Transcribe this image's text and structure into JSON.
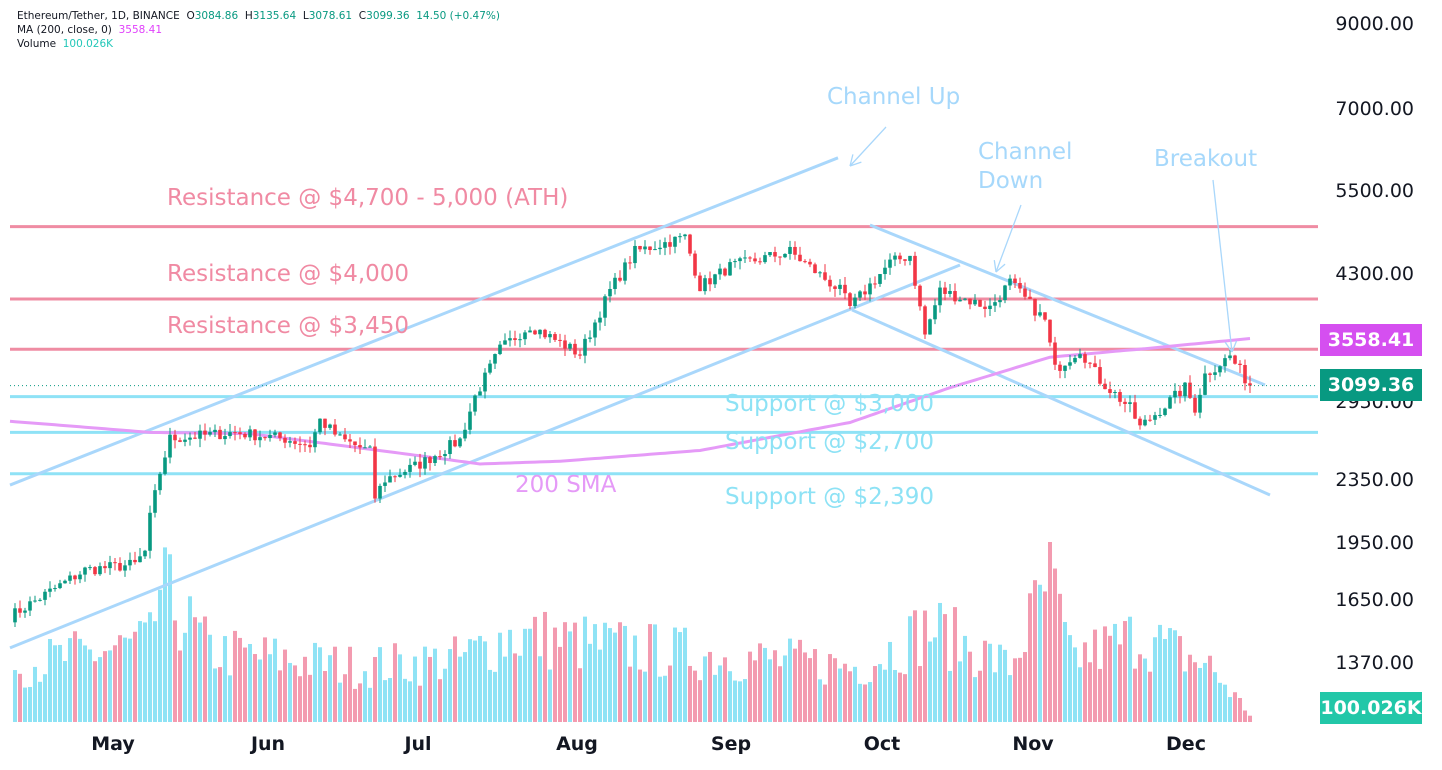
{
  "legend": {
    "symbol": "Ethereum/Tether, 1D, BINANCE",
    "open_label": "O",
    "open": "3084.86",
    "high_label": "H",
    "high": "3135.64",
    "low_label": "L",
    "low": "3078.61",
    "close_label": "C",
    "close": "3099.36",
    "change": "14.50 (+0.47%)",
    "ma_label": "MA (200, close, 0)",
    "ma_value": "3558.41",
    "volume_label": "Volume",
    "volume_value": "100.026K"
  },
  "colors": {
    "up": "#089981",
    "down": "#f23645",
    "vol_up": "#8fe3f5",
    "vol_down": "#f39bb0",
    "resistance": "#ef8ca3",
    "support": "#8fe2f6",
    "channel": "#a9d7fb",
    "ma": "#e59af7"
  },
  "price_tags": {
    "ma": "3558.41",
    "last": "3099.36",
    "volume": "100.026K"
  },
  "annotations": {
    "channel_up": "Channel Up",
    "channel_down_1": "Channel",
    "channel_down_2": "Down",
    "breakout": "Breakout",
    "res_ath": "Resistance @ $4,700 - 5,000 (ATH)",
    "res_4000": "Resistance @ $4,000",
    "res_3450": "Resistance @ $3,450",
    "sup_3000": "Support @ $3,000",
    "sup_2700": "Support @ $2,700",
    "sup_2390": "Support @ $2,390",
    "sma": "200 SMA"
  },
  "chart_data": {
    "type": "candlestick",
    "title": "Ethereum/Tether, 1D, BINANCE",
    "scale": "log",
    "y_ticks": [
      "9000.00",
      "7000.00",
      "5500.00",
      "4300.00",
      "2950.00",
      "2350.00",
      "1950.00",
      "1650.00",
      "1370.00"
    ],
    "x_ticks": [
      "May",
      "Jun",
      "Jul",
      "Aug",
      "Sep",
      "Oct",
      "Nov",
      "Dec"
    ],
    "days": 248,
    "close_keypoints": [
      [
        0,
        1570
      ],
      [
        15,
        1800
      ],
      [
        25,
        1830
      ],
      [
        27,
        1900
      ],
      [
        28,
        2100
      ],
      [
        30,
        2400
      ],
      [
        32,
        2650
      ],
      [
        45,
        2700
      ],
      [
        55,
        2650
      ],
      [
        60,
        2600
      ],
      [
        62,
        2800
      ],
      [
        66,
        2650
      ],
      [
        72,
        2550
      ],
      [
        73,
        2230
      ],
      [
        75,
        2350
      ],
      [
        82,
        2460
      ],
      [
        90,
        2640
      ],
      [
        93,
        3000
      ],
      [
        98,
        3450
      ],
      [
        104,
        3700
      ],
      [
        114,
        3400
      ],
      [
        120,
        4100
      ],
      [
        125,
        4600
      ],
      [
        135,
        4800
      ],
      [
        138,
        4150
      ],
      [
        144,
        4400
      ],
      [
        156,
        4600
      ],
      [
        166,
        4100
      ],
      [
        168,
        3900
      ],
      [
        176,
        4450
      ],
      [
        180,
        4550
      ],
      [
        183,
        3600
      ],
      [
        186,
        4100
      ],
      [
        196,
        3900
      ],
      [
        200,
        4200
      ],
      [
        207,
        3750
      ],
      [
        209,
        3250
      ],
      [
        214,
        3450
      ],
      [
        218,
        3150
      ],
      [
        224,
        2900
      ],
      [
        226,
        2740
      ],
      [
        235,
        3080
      ],
      [
        237,
        2900
      ],
      [
        239,
        3200
      ],
      [
        244,
        3380
      ],
      [
        248,
        3099
      ]
    ],
    "ma200": [
      [
        0,
        2790
      ],
      [
        28,
        2700
      ],
      [
        48,
        2690
      ],
      [
        82,
        2520
      ],
      [
        94,
        2460
      ],
      [
        110,
        2480
      ],
      [
        138,
        2560
      ],
      [
        168,
        2780
      ],
      [
        188,
        3080
      ],
      [
        208,
        3370
      ],
      [
        228,
        3460
      ],
      [
        248,
        3560
      ]
    ],
    "volume_keypoints": [
      [
        0,
        0.35
      ],
      [
        28,
        0.5
      ],
      [
        30,
        0.85
      ],
      [
        40,
        0.45
      ],
      [
        70,
        0.35
      ],
      [
        90,
        0.4
      ],
      [
        100,
        0.55
      ],
      [
        130,
        0.45
      ],
      [
        170,
        0.35
      ],
      [
        184,
        0.6
      ],
      [
        200,
        0.35
      ],
      [
        208,
        0.9
      ],
      [
        212,
        0.4
      ],
      [
        226,
        0.55
      ],
      [
        240,
        0.35
      ],
      [
        248,
        0.05
      ]
    ],
    "levels": {
      "resistance": [
        4950,
        4000,
        3450
      ],
      "support": [
        3000,
        2700,
        2390
      ]
    },
    "trendlines": {
      "channel_up_upper": [
        [
          0,
          2312
        ],
        [
          165.6,
          6063
        ]
      ],
      "channel_up_lower": [
        [
          0,
          1431
        ],
        [
          190,
          4421
        ]
      ],
      "channel_down_upper": [
        [
          172,
          4974
        ],
        [
          251,
          3105
        ]
      ],
      "channel_down_lower": [
        [
          168.4,
          3873
        ],
        [
          252,
          2245
        ]
      ]
    },
    "last_price": 3099.36
  }
}
